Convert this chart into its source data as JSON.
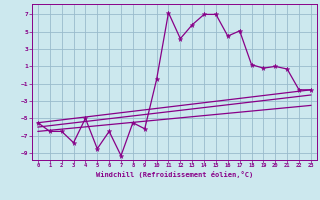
{
  "title": "",
  "xlabel": "Windchill (Refroidissement éolien,°C)",
  "ylabel": "",
  "bg_color": "#cce8ee",
  "grid_color": "#99bbcc",
  "line_color": "#880088",
  "xlim": [
    -0.5,
    23.5
  ],
  "ylim": [
    -9.8,
    8.2
  ],
  "xticks": [
    0,
    1,
    2,
    3,
    4,
    5,
    6,
    7,
    8,
    9,
    10,
    11,
    12,
    13,
    14,
    15,
    16,
    17,
    18,
    19,
    20,
    21,
    22,
    23
  ],
  "yticks": [
    -9,
    -7,
    -5,
    -3,
    -1,
    1,
    3,
    5,
    7
  ],
  "main_x": [
    0,
    1,
    2,
    3,
    4,
    5,
    6,
    7,
    8,
    9,
    10,
    11,
    12,
    13,
    14,
    15,
    16,
    17,
    18,
    19,
    20,
    21,
    22,
    23
  ],
  "main_y": [
    -5.5,
    -6.5,
    -6.5,
    -7.8,
    -5.0,
    -8.5,
    -6.5,
    -9.3,
    -5.5,
    -6.2,
    -0.5,
    7.2,
    4.2,
    5.8,
    7.0,
    7.0,
    4.5,
    5.1,
    1.2,
    0.8,
    1.0,
    0.7,
    -1.7,
    -1.7
  ],
  "trend1_x": [
    0,
    23
  ],
  "trend1_y": [
    -5.5,
    -1.7
  ],
  "trend2_x": [
    0,
    23
  ],
  "trend2_y": [
    -6.0,
    -2.3
  ],
  "trend3_x": [
    0,
    23
  ],
  "trend3_y": [
    -6.5,
    -3.5
  ]
}
